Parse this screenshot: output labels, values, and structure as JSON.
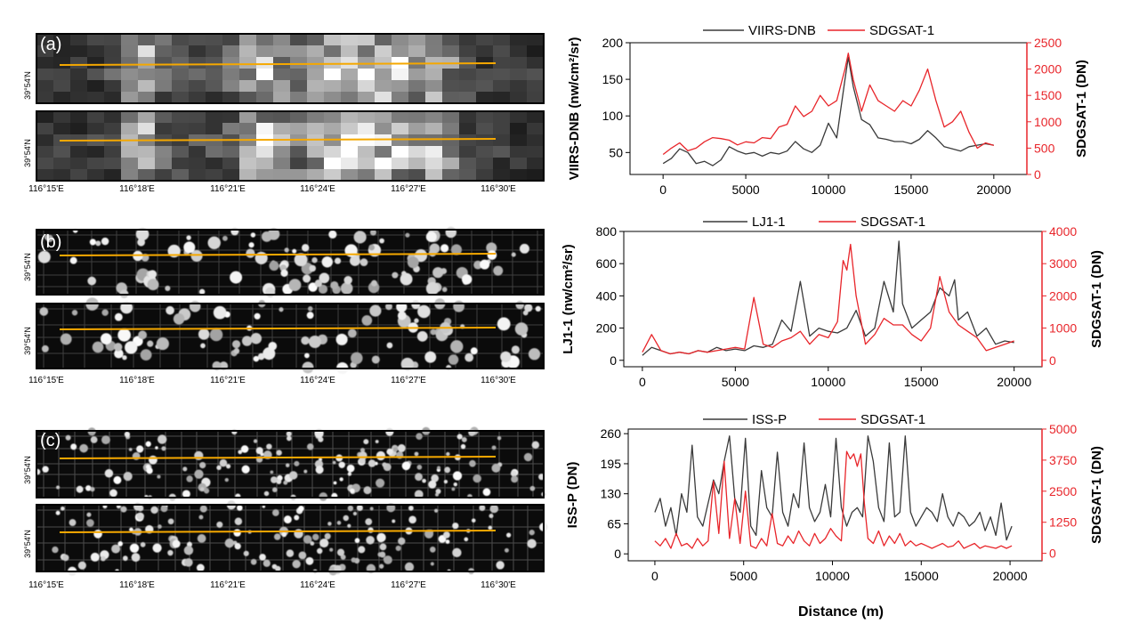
{
  "figure": {
    "xlabel": "Distance (m)",
    "lon_ticks": [
      "116°15'E",
      "116°18'E",
      "116°21'E",
      "116°24'E",
      "116°27'E",
      "116°30'E"
    ],
    "lat_tick": "39°54'N",
    "map_panels": [
      {
        "label": "(a)",
        "style": "coarse"
      },
      {
        "label": "(b)",
        "style": "medium"
      },
      {
        "label": "(c)",
        "style": "fine"
      }
    ],
    "colors": {
      "reference": "#3a3a3a",
      "sdgsat": "#e8252a",
      "profile_line": "#f5a800",
      "right_axis": "#e8252a"
    }
  },
  "chart_data": [
    {
      "type": "line",
      "xlabel": "",
      "ylabel": "VIIRS-DNB (nw/cm²/sr)",
      "ylabel_right": "SDGSAT-1 (DN)",
      "xlim": [
        -2000,
        22000
      ],
      "xticks": [
        0,
        5000,
        10000,
        15000,
        20000
      ],
      "ylim": [
        20,
        200
      ],
      "yticks": [
        50,
        100,
        150,
        200
      ],
      "ylim_right": [
        0,
        2500
      ],
      "yticks_right": [
        0,
        500,
        1000,
        1500,
        2000,
        2500
      ],
      "legend": "top",
      "series": [
        {
          "name": "VIIRS-DNB",
          "axis": "left",
          "color": "#3a3a3a",
          "x": [
            0,
            500,
            1000,
            1500,
            2000,
            2500,
            3000,
            3500,
            4000,
            4500,
            5000,
            5500,
            6000,
            6500,
            7000,
            7500,
            8000,
            8500,
            9000,
            9500,
            10000,
            10500,
            11000,
            11200,
            11500,
            12000,
            12500,
            13000,
            13500,
            14000,
            14500,
            15000,
            15500,
            16000,
            16500,
            17000,
            17500,
            18000,
            18500,
            19000,
            19500,
            20000
          ],
          "y": [
            35,
            42,
            55,
            50,
            35,
            38,
            32,
            40,
            58,
            52,
            48,
            50,
            45,
            50,
            48,
            52,
            65,
            55,
            50,
            60,
            90,
            70,
            150,
            180,
            140,
            95,
            88,
            70,
            68,
            65,
            65,
            62,
            68,
            80,
            70,
            58,
            55,
            52,
            58,
            60,
            62,
            60
          ]
        },
        {
          "name": "SDGSAT-1",
          "axis": "right",
          "color": "#e8252a",
          "x": [
            0,
            500,
            1000,
            1500,
            2000,
            2500,
            3000,
            3500,
            4000,
            4500,
            5000,
            5500,
            6000,
            6500,
            7000,
            7500,
            8000,
            8500,
            9000,
            9500,
            10000,
            10500,
            11000,
            11200,
            11500,
            12000,
            12500,
            13000,
            13500,
            14000,
            14500,
            15000,
            15500,
            16000,
            16500,
            17000,
            17500,
            18000,
            18500,
            19000,
            19500,
            20000
          ],
          "y": [
            380,
            500,
            600,
            450,
            500,
            620,
            700,
            680,
            650,
            560,
            620,
            600,
            700,
            680,
            900,
            950,
            1300,
            1100,
            1200,
            1500,
            1300,
            1400,
            2000,
            2300,
            1800,
            1200,
            1700,
            1400,
            1300,
            1200,
            1400,
            1300,
            1600,
            2000,
            1400,
            900,
            1000,
            1200,
            800,
            500,
            600,
            550
          ]
        }
      ]
    },
    {
      "type": "line",
      "xlabel": "",
      "ylabel": "LJ1-1 (nw/cm²/sr)",
      "ylabel_right": "SDGSAT-1 (DN)",
      "xlim": [
        -1000,
        21500
      ],
      "xticks": [
        0,
        5000,
        10000,
        15000,
        20000
      ],
      "ylim": [
        -40,
        800
      ],
      "yticks": [
        0,
        200,
        400,
        600,
        800
      ],
      "ylim_right": [
        -200,
        4000
      ],
      "yticks_right": [
        0,
        1000,
        2000,
        3000,
        4000
      ],
      "legend": "top",
      "series": [
        {
          "name": "LJ1-1",
          "axis": "left",
          "color": "#3a3a3a",
          "x": [
            0,
            500,
            1000,
            1500,
            2000,
            2500,
            3000,
            3500,
            4000,
            4500,
            5000,
            5500,
            6000,
            6500,
            7000,
            7500,
            8000,
            8500,
            9000,
            9500,
            10000,
            10500,
            11000,
            11500,
            12000,
            12500,
            13000,
            13500,
            13800,
            14000,
            14500,
            15000,
            15500,
            16000,
            16500,
            16800,
            17000,
            17500,
            18000,
            18500,
            19000,
            19500,
            20000
          ],
          "y": [
            30,
            80,
            60,
            40,
            50,
            40,
            60,
            50,
            80,
            60,
            70,
            60,
            90,
            80,
            100,
            250,
            180,
            490,
            150,
            200,
            180,
            170,
            200,
            310,
            150,
            200,
            490,
            300,
            740,
            350,
            200,
            250,
            300,
            450,
            400,
            500,
            250,
            300,
            150,
            200,
            100,
            120,
            110
          ]
        },
        {
          "name": "SDGSAT-1",
          "axis": "right",
          "color": "#e8252a",
          "x": [
            0,
            500,
            1000,
            1500,
            2000,
            2500,
            3000,
            3500,
            4000,
            4500,
            5000,
            5500,
            6000,
            6500,
            7000,
            7500,
            8000,
            8500,
            9000,
            9500,
            10000,
            10500,
            10800,
            11000,
            11200,
            11500,
            12000,
            12500,
            13000,
            13500,
            14000,
            14500,
            15000,
            15500,
            16000,
            16500,
            17000,
            17500,
            18000,
            18500,
            19000,
            19500,
            20000
          ],
          "y": [
            250,
            800,
            300,
            200,
            250,
            200,
            300,
            250,
            300,
            350,
            400,
            350,
            1950,
            500,
            400,
            600,
            700,
            900,
            500,
            800,
            700,
            1200,
            3100,
            2800,
            3600,
            2000,
            500,
            800,
            1300,
            1100,
            1100,
            800,
            600,
            1000,
            2600,
            1500,
            1100,
            900,
            700,
            300,
            400,
            500,
            600
          ]
        }
      ]
    },
    {
      "type": "line",
      "xlabel": "Distance (m)",
      "ylabel": "ISS-P (DN)",
      "ylabel_right": "SDGSAT-1 (DN)",
      "xlim": [
        -1500,
        21800
      ],
      "xticks": [
        0,
        5000,
        10000,
        15000,
        20000
      ],
      "ylim": [
        -15,
        270
      ],
      "yticks": [
        0,
        65,
        130,
        195,
        260
      ],
      "ylim_right": [
        -300,
        5000
      ],
      "yticks_right": [
        0,
        1250,
        2500,
        3750,
        5000
      ],
      "legend": "top",
      "series": [
        {
          "name": "ISS-P",
          "axis": "left",
          "color": "#3a3a3a",
          "x": [
            0,
            300,
            600,
            900,
            1200,
            1500,
            1800,
            2100,
            2400,
            2700,
            3000,
            3300,
            3600,
            3900,
            4200,
            4500,
            4800,
            5100,
            5400,
            5700,
            6000,
            6300,
            6600,
            6900,
            7200,
            7500,
            7800,
            8100,
            8400,
            8700,
            9000,
            9300,
            9600,
            9900,
            10200,
            10500,
            10800,
            11100,
            11400,
            11700,
            12000,
            12300,
            12600,
            12900,
            13200,
            13500,
            13800,
            14100,
            14400,
            14700,
            15000,
            15300,
            15600,
            15900,
            16200,
            16500,
            16800,
            17100,
            17400,
            17700,
            18000,
            18300,
            18600,
            18900,
            19200,
            19500,
            19800,
            20100
          ],
          "y": [
            90,
            120,
            60,
            100,
            40,
            130,
            90,
            235,
            80,
            60,
            110,
            160,
            130,
            200,
            255,
            120,
            90,
            250,
            60,
            40,
            180,
            100,
            80,
            220,
            90,
            60,
            130,
            100,
            240,
            100,
            70,
            90,
            150,
            80,
            250,
            100,
            60,
            90,
            100,
            80,
            255,
            200,
            100,
            70,
            240,
            80,
            90,
            255,
            90,
            60,
            80,
            100,
            90,
            70,
            130,
            80,
            60,
            90,
            80,
            60,
            70,
            90,
            50,
            80,
            40,
            110,
            30,
            60
          ]
        },
        {
          "name": "SDGSAT-1",
          "axis": "right",
          "color": "#e8252a",
          "x": [
            0,
            300,
            600,
            900,
            1200,
            1500,
            1800,
            2100,
            2400,
            2700,
            3000,
            3300,
            3600,
            3900,
            4200,
            4500,
            4800,
            5100,
            5400,
            5700,
            6000,
            6300,
            6600,
            6900,
            7200,
            7500,
            7800,
            8100,
            8400,
            8700,
            9000,
            9300,
            9600,
            9900,
            10200,
            10500,
            10800,
            11000,
            11200,
            11400,
            11600,
            11800,
            12000,
            12300,
            12600,
            12900,
            13200,
            13500,
            13800,
            14100,
            14400,
            14700,
            15000,
            15300,
            15600,
            15900,
            16200,
            16500,
            16800,
            17100,
            17400,
            17700,
            18000,
            18300,
            18600,
            18900,
            19200,
            19500,
            19800,
            20100
          ],
          "y": [
            500,
            300,
            600,
            200,
            800,
            300,
            400,
            200,
            600,
            300,
            500,
            2900,
            800,
            3700,
            600,
            2200,
            400,
            2500,
            300,
            200,
            600,
            300,
            1600,
            400,
            300,
            700,
            400,
            900,
            500,
            300,
            800,
            400,
            600,
            1000,
            700,
            500,
            4100,
            3800,
            4000,
            3500,
            4000,
            2000,
            600,
            400,
            900,
            300,
            700,
            400,
            800,
            300,
            500,
            300,
            400,
            300,
            200,
            300,
            400,
            250,
            300,
            500,
            200,
            300,
            400,
            200,
            300,
            250,
            200,
            300,
            200,
            300
          ]
        }
      ]
    }
  ]
}
